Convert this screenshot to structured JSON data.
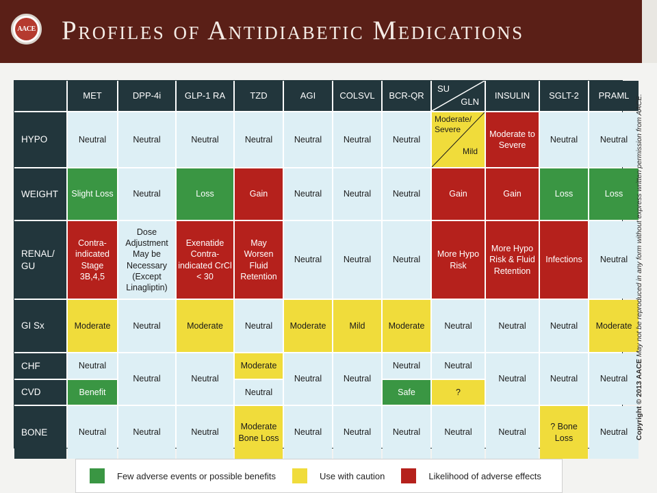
{
  "header": {
    "logo_text": "AACE",
    "title": "Profiles of Antidiabetic Medications"
  },
  "table": {
    "columns": [
      "MET",
      "DPP-4i",
      "GLP-1 RA",
      "TZD",
      "AGI",
      "COLSVL",
      "BCR-QR",
      "INSULIN",
      "SGLT-2",
      "PRAML"
    ],
    "su_label": "SU",
    "gln_label": "GLN",
    "rows": {
      "hypo": {
        "label": "HYPO",
        "met": "Neutral",
        "dpp4": "Neutral",
        "glp1": "Neutral",
        "tzd": "Neutral",
        "agi": "Neutral",
        "colsvl": "Neutral",
        "bcrqr": "Neutral",
        "su_upper": "Moderate/ Severe",
        "gln_lower": "Mild",
        "insulin": "Moderate to Severe",
        "sglt2": "Neutral",
        "praml": "Neutral"
      },
      "weight": {
        "label": "WEIGHT",
        "met": "Slight Loss",
        "dpp4": "Neutral",
        "glp1": "Loss",
        "tzd": "Gain",
        "agi": "Neutral",
        "colsvl": "Neutral",
        "bcrqr": "Neutral",
        "sugln": "Gain",
        "insulin": "Gain",
        "sglt2": "Loss",
        "praml": "Loss"
      },
      "renal": {
        "label": "RENAL/ GU",
        "met": "Contra-indicated Stage 3B,4,5",
        "dpp4": "Dose Adjustment May be Necessary (Except Linagliptin)",
        "glp1": "Exenatide Contra-indicated CrCl < 30",
        "tzd": "May Worsen Fluid Retention",
        "agi": "Neutral",
        "colsvl": "Neutral",
        "bcrqr": "Neutral",
        "sugln": "More Hypo Risk",
        "insulin": "More Hypo Risk & Fluid Retention",
        "sglt2": "Infections",
        "praml": "Neutral"
      },
      "gi": {
        "label": "GI Sx",
        "met": "Moderate",
        "dpp4": "Neutral",
        "glp1": "Moderate",
        "tzd": "Neutral",
        "agi": "Moderate",
        "colsvl": "Mild",
        "bcrqr": "Moderate",
        "sugln": "Neutral",
        "insulin": "Neutral",
        "sglt2": "Neutral",
        "praml": "Moderate"
      },
      "chf": {
        "label": "CHF",
        "met": "Neutral",
        "tzd": "Moderate",
        "bcrqr": "Neutral",
        "sugln": "Neutral"
      },
      "cvd": {
        "label": "CVD",
        "met": "Benefit",
        "tzd": "Neutral",
        "bcrqr": "Safe",
        "sugln": "?"
      },
      "chf_cvd_shared": {
        "dpp4": "Neutral",
        "glp1": "Neutral",
        "agi": "Neutral",
        "colsvl": "Neutral",
        "insulin": "Neutral",
        "sglt2": "Neutral",
        "praml": "Neutral"
      },
      "bone": {
        "label": "BONE",
        "met": "Neutral",
        "dpp4": "Neutral",
        "glp1": "Neutral",
        "tzd": "Moderate Bone Loss",
        "agi": "Neutral",
        "colsvl": "Neutral",
        "bcrqr": "Neutral",
        "sugln": "Neutral",
        "insulin": "Neutral",
        "sglt2": "? Bone Loss",
        "praml": "Neutral"
      }
    }
  },
  "copyright": {
    "bold": "Copyright © 2013 AACE",
    "italic": "May not be reproduced in any form without express written permission from AACE."
  },
  "legend": {
    "green": "Few adverse events or possible benefits",
    "yellow": "Use with caution",
    "red": "Likelihood of adverse effects"
  },
  "colors": {
    "banner": "#5a1f17",
    "header_cell": "#22363c",
    "neutral": "#ddeff5",
    "green": "#3a9643",
    "yellow": "#f0dc3b",
    "red": "#b5211c"
  }
}
